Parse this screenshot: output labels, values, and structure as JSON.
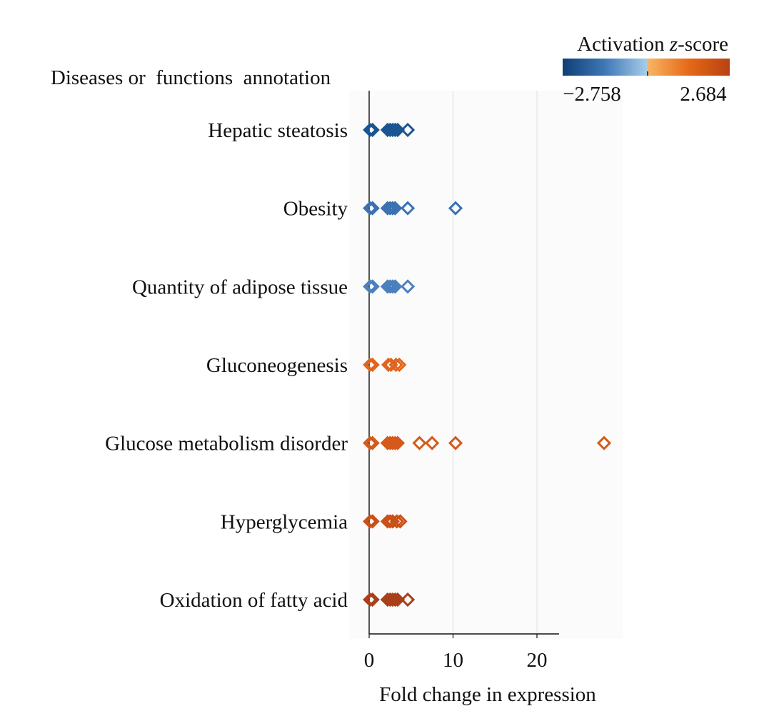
{
  "chart_data": {
    "type": "scatter",
    "title": "",
    "y_header": "Diseases or  functions  annotation",
    "xlabel": "Fold change in expression",
    "xlim": [
      0,
      30
    ],
    "x_ticks": [
      "0",
      "10",
      "20"
    ],
    "x_tick_values": [
      0,
      10,
      20
    ],
    "vertical_gridlines_at": [
      10,
      20
    ],
    "marker": "open-diamond",
    "legend": {
      "title": "Activation ",
      "title_italic": "z",
      "title_suffix": "-score",
      "min_label": "−2.758",
      "max_label": "2.684",
      "min": -2.758,
      "max": 2.684,
      "colors": [
        "#0e3f75",
        "#3f78b7",
        "#a7cdea",
        "#f8b565",
        "#e56a18",
        "#b84112"
      ],
      "placement": "top-right"
    },
    "categories": [
      "Hepatic steatosis",
      "Obesity",
      "Quantity of adipose tissue",
      "Gluconeogenesis",
      "Glucose metabolism disorder",
      "Hyperglycemia",
      "Oxidation of fatty acid"
    ],
    "series": [
      {
        "category": "Hepatic steatosis",
        "color": "#1a5591",
        "x": [
          0.1,
          0.4,
          2.2,
          2.5,
          2.8,
          3.1,
          3.4,
          4.6
        ]
      },
      {
        "category": "Obesity",
        "color": "#3c72b2",
        "x": [
          0.1,
          0.4,
          2.2,
          2.5,
          2.8,
          3.1,
          4.6,
          10.3
        ]
      },
      {
        "category": "Quantity of adipose tissue",
        "color": "#4a80bd",
        "x": [
          0.1,
          0.4,
          2.2,
          2.5,
          2.8,
          3.1,
          4.6
        ]
      },
      {
        "category": "Gluconeogenesis",
        "color": "#e0651e",
        "x": [
          0.1,
          0.4,
          2.3,
          2.6,
          3.2,
          3.6
        ]
      },
      {
        "category": "Glucose metabolism disorder",
        "color": "#d45a1c",
        "x": [
          0.1,
          0.4,
          2.2,
          2.5,
          2.8,
          3.1,
          3.4,
          6.0,
          7.5,
          10.3,
          28.0
        ]
      },
      {
        "category": "Hyperglycemia",
        "color": "#c95117",
        "x": [
          0.1,
          0.4,
          2.2,
          2.5,
          2.8,
          3.3,
          3.7
        ]
      },
      {
        "category": "Oxidation of fatty acid",
        "color": "#a8401a",
        "x": [
          0.1,
          0.4,
          2.2,
          2.5,
          2.8,
          3.1,
          3.4,
          4.6
        ]
      }
    ]
  }
}
